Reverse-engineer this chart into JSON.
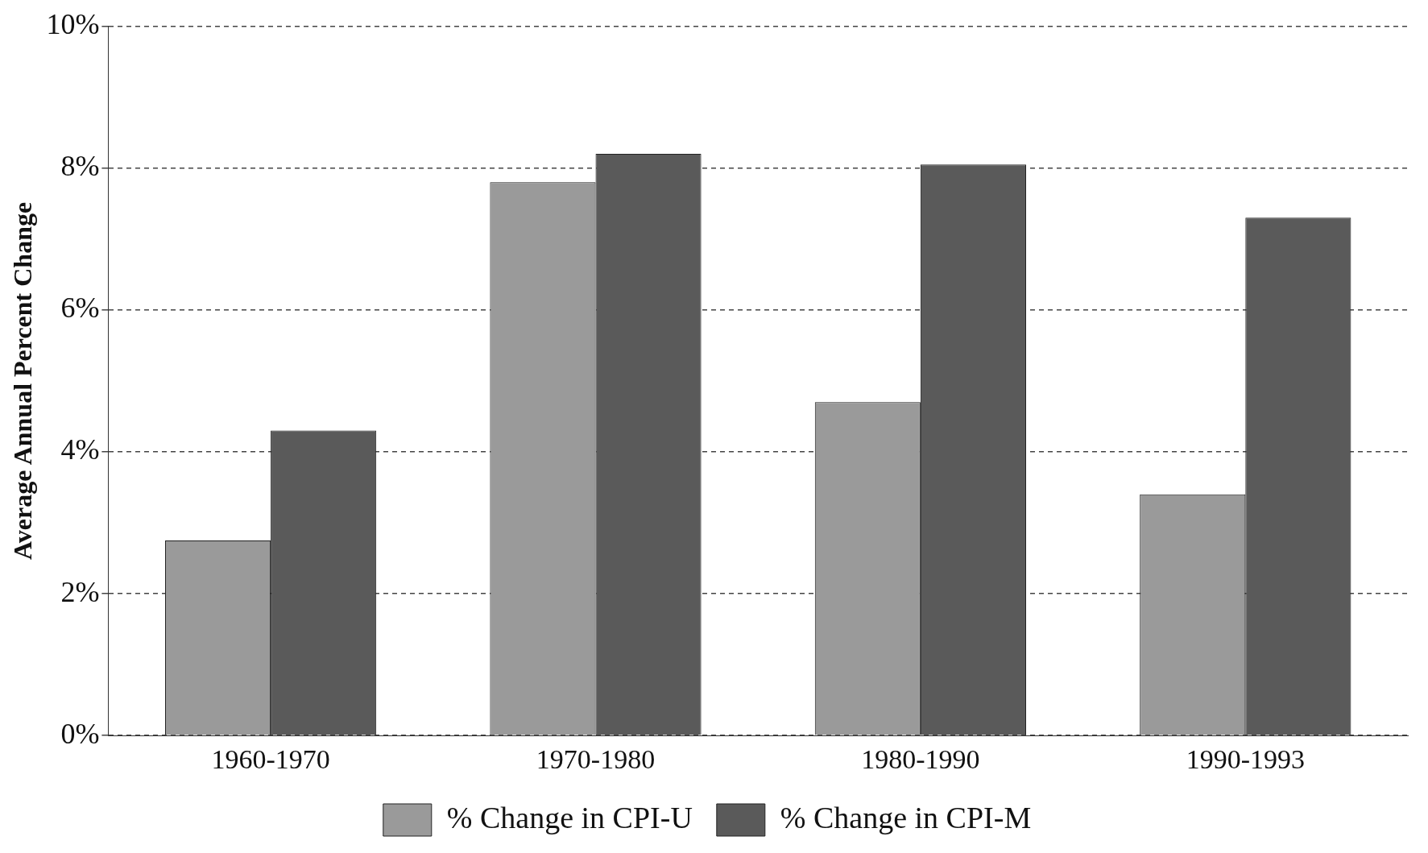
{
  "chart_data": {
    "type": "bar",
    "ylabel": "Average Annual Percent Change",
    "categories": [
      "1960-1970",
      "1970-1980",
      "1980-1990",
      "1990-1993"
    ],
    "series": [
      {
        "name": "% Change in CPI-U",
        "color": "#9a9a9a",
        "values": [
          2.75,
          7.8,
          4.7,
          3.4
        ]
      },
      {
        "name": "% Change in CPI-M",
        "color": "#5a5a5a",
        "values": [
          4.3,
          8.2,
          8.05,
          7.3
        ]
      }
    ],
    "ylim": [
      0,
      10
    ],
    "yticks": [
      {
        "value": 0,
        "label": "0%"
      },
      {
        "value": 2,
        "label": "2%"
      },
      {
        "value": 4,
        "label": "4%"
      },
      {
        "value": 6,
        "label": "6%"
      },
      {
        "value": 8,
        "label": "8%"
      },
      {
        "value": 10,
        "label": "10%"
      }
    ],
    "grid": "y",
    "legend": "bottom"
  }
}
